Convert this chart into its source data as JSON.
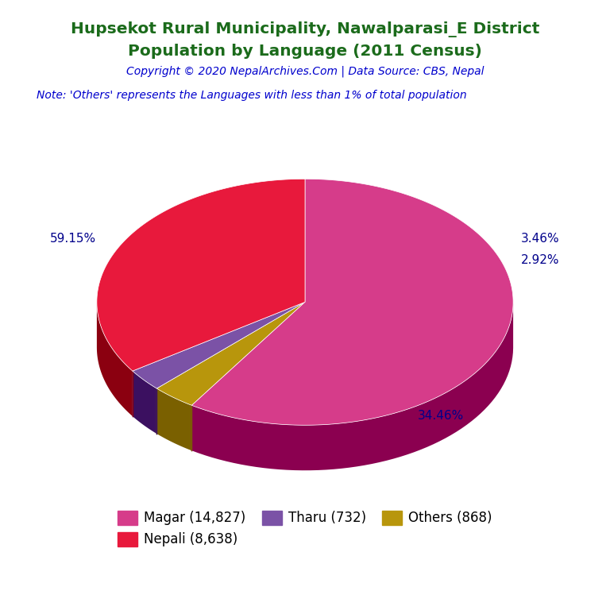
{
  "title_line1": "Hupsekot Rural Municipality, Nawalparasi_E District",
  "title_line2": "Population by Language (2011 Census)",
  "copyright": "Copyright © 2020 NepalArchives.Com | Data Source: CBS, Nepal",
  "note": "Note: 'Others' represents the Languages with less than 1% of total population",
  "labels": [
    "Magar",
    "Nepali",
    "Tharu",
    "Others"
  ],
  "values": [
    14827,
    8638,
    732,
    868
  ],
  "percentages": [
    59.15,
    34.46,
    2.92,
    3.46
  ],
  "colors": [
    "#D63C8A",
    "#E8193C",
    "#7B52A6",
    "#B8960C"
  ],
  "shadow_colors": [
    "#8B0050",
    "#8B0010",
    "#3B1060",
    "#7A6000"
  ],
  "legend_labels": [
    "Magar (14,827)",
    "Nepali (8,638)",
    "Tharu (732)",
    "Others (868)"
  ],
  "title_color": "#1B6B1B",
  "copyright_color": "#0000CD",
  "note_color": "#0000CD",
  "pct_color": "#00008B",
  "background_color": "#FFFFFF"
}
